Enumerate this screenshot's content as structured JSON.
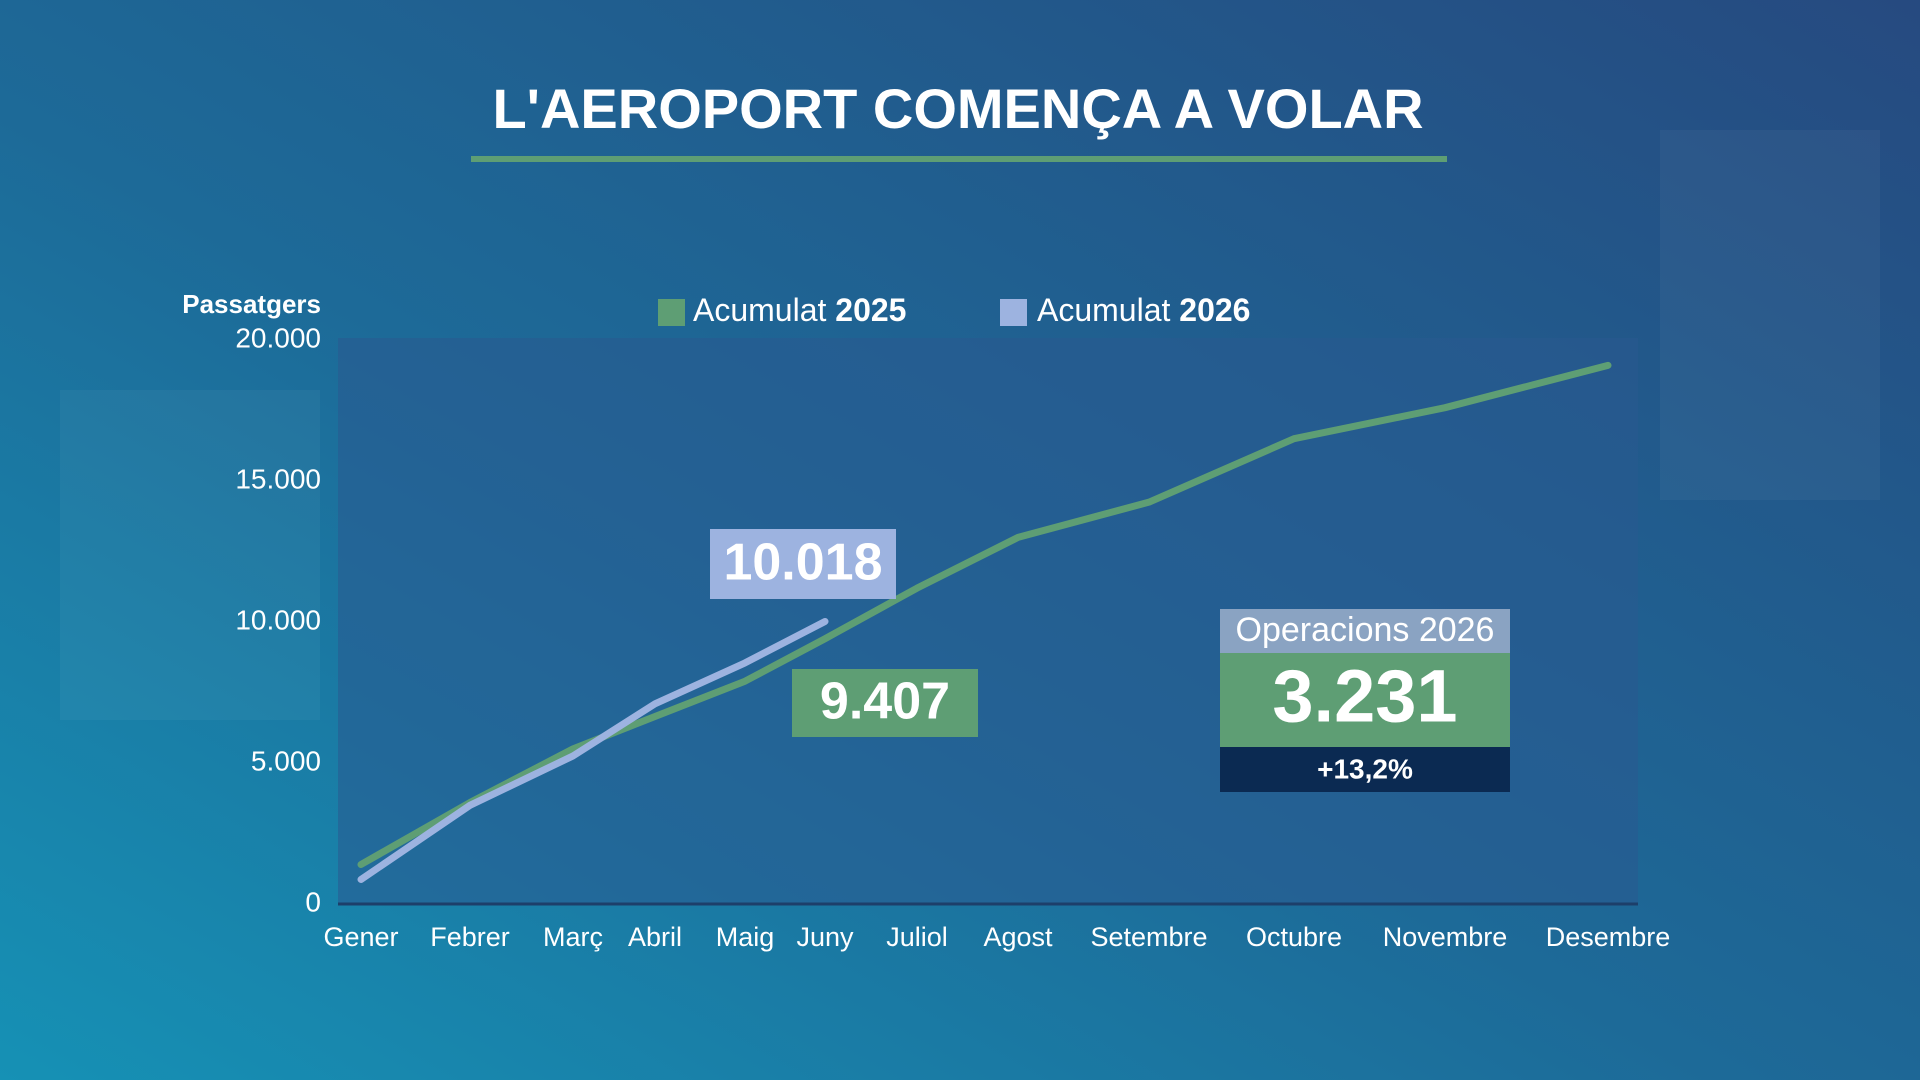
{
  "chart_data": {
    "type": "line",
    "title": "L'AEROPORT COMENÇA A VOLAR",
    "ylabel": "Passatgers",
    "categories": [
      "Gener",
      "Febrer",
      "Març",
      "Abril",
      "Maig",
      "Juny",
      "Juliol",
      "Agost",
      "Setembre",
      "Octubre",
      "Novembre",
      "Desembre"
    ],
    "series": [
      {
        "name": "Acumulat 2025",
        "color": "#5e9e74",
        "values": [
          1400,
          3600,
          5500,
          6650,
          7900,
          9407,
          11200,
          13000,
          14250,
          16500,
          17600,
          19100
        ],
        "value_labels": [
          null,
          null,
          null,
          null,
          null,
          "9.407",
          null,
          null,
          null,
          null,
          null,
          null
        ]
      },
      {
        "name": "Acumulat 2026",
        "color": "#9db3e0",
        "values": [
          870,
          3500,
          5250,
          7100,
          8550,
          10018,
          null,
          null,
          null,
          null,
          null,
          null
        ],
        "value_labels": [
          null,
          null,
          null,
          null,
          null,
          "10.018",
          null,
          null,
          null,
          null,
          null,
          null
        ]
      }
    ],
    "ylim": [
      0,
      20000
    ],
    "yticks": [
      0,
      {
        "value": 5000,
        "label": "5.000"
      },
      {
        "value": 10000,
        "label": "10.000"
      },
      {
        "value": 15000,
        "label": "15.000"
      },
      {
        "value": 20000,
        "label": "20.000"
      }
    ],
    "grid": false,
    "legend": "top",
    "annotation": {
      "title": "Operacions 2026",
      "value": "3.231",
      "change": "+13,2%"
    }
  }
}
